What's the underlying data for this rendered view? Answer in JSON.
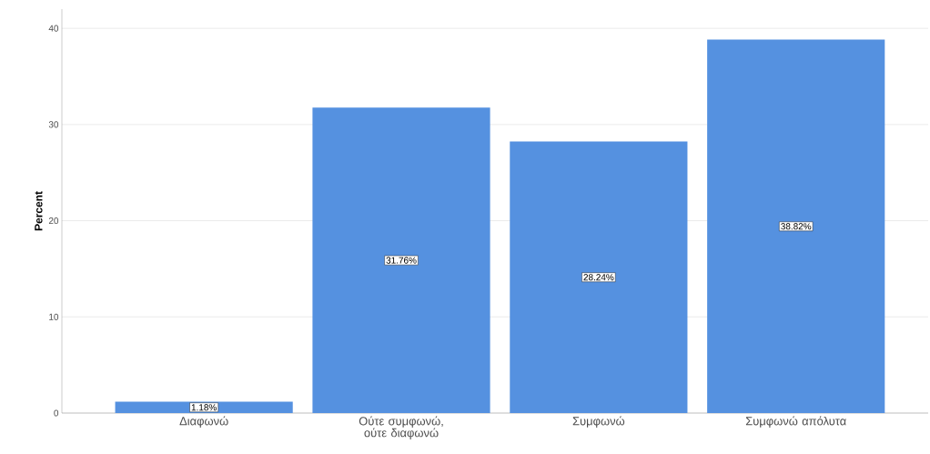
{
  "chart_data": {
    "type": "bar",
    "ylabel": "Percent",
    "categories": [
      "Διαφωνώ",
      "Ούτε συμφωνώ, ούτε διαφωνώ",
      "Συμφωνώ",
      "Συμφωνώ απόλυτα"
    ],
    "values": [
      1.18,
      31.76,
      28.24,
      38.82
    ],
    "value_labels": [
      "1.18%",
      "31.76%",
      "28.24%",
      "38.82%"
    ],
    "color": "#5591e0",
    "ylim": [
      0,
      42
    ],
    "yticks": [
      0,
      10,
      20,
      30,
      40
    ],
    "grid": "y"
  }
}
